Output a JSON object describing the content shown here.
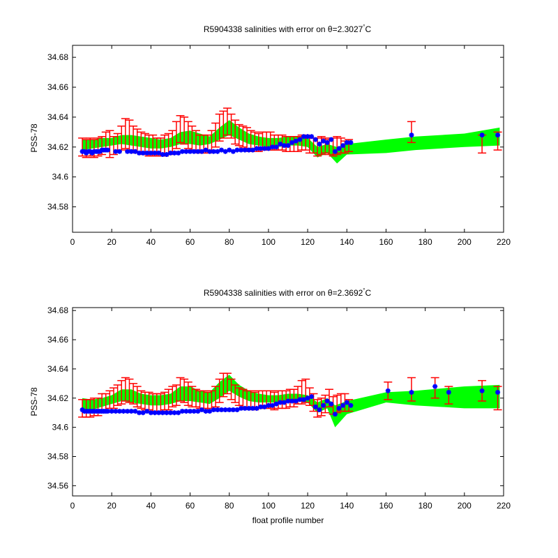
{
  "chart_data": [
    {
      "type": "line",
      "title": "R5904338 salinities with error on θ=2.3027",
      "title_superscript": "°",
      "title_unit": "C",
      "xlabel": "",
      "ylabel": "PSS-78",
      "xlim": [
        0,
        220
      ],
      "ylim": [
        34.563,
        34.688
      ],
      "xticks": [
        0,
        20,
        40,
        60,
        80,
        100,
        120,
        140,
        160,
        180,
        200,
        220
      ],
      "yticks": [
        34.58,
        34.6,
        34.62,
        34.64,
        34.66,
        34.68
      ],
      "ytick_labels": [
        "34.58",
        "34.6",
        "34.62",
        "34.64",
        "34.66",
        "34.68"
      ],
      "band_color": "#00ff00",
      "error_color": "#ff0000",
      "point_color": "#0000ff",
      "band": {
        "x": [
          5,
          10,
          15,
          20,
          25,
          30,
          35,
          40,
          45,
          50,
          55,
          60,
          65,
          70,
          75,
          80,
          85,
          90,
          95,
          100,
          105,
          110,
          115,
          120,
          125,
          130,
          135,
          140,
          160,
          175,
          200,
          218
        ],
        "lower": [
          34.618,
          34.619,
          34.62,
          34.621,
          34.622,
          34.621,
          34.62,
          34.619,
          34.619,
          34.62,
          34.622,
          34.622,
          34.621,
          34.622,
          34.625,
          34.628,
          34.625,
          34.622,
          34.621,
          34.62,
          34.62,
          34.621,
          34.621,
          34.62,
          34.613,
          34.616,
          34.609,
          34.615,
          34.616,
          34.618,
          34.62,
          34.621
        ],
        "upper": [
          34.625,
          34.625,
          34.626,
          34.626,
          34.628,
          34.628,
          34.627,
          34.626,
          34.625,
          34.626,
          34.63,
          34.631,
          34.629,
          34.627,
          34.633,
          34.638,
          34.633,
          34.629,
          34.627,
          34.626,
          34.626,
          34.627,
          34.627,
          34.626,
          34.62,
          34.622,
          34.62,
          34.622,
          34.625,
          34.627,
          34.629,
          34.633
        ]
      },
      "errorbars": {
        "x": [
          5,
          7,
          9,
          11,
          13,
          15,
          17,
          19,
          21,
          23,
          25,
          27,
          29,
          31,
          33,
          35,
          37,
          39,
          41,
          43,
          45,
          47,
          49,
          51,
          53,
          55,
          57,
          59,
          61,
          63,
          65,
          67,
          69,
          71,
          73,
          75,
          77,
          79,
          81,
          83,
          85,
          87,
          89,
          91,
          93,
          95,
          97,
          99,
          101,
          103,
          105,
          107,
          109,
          111,
          113,
          115,
          117,
          119,
          121,
          123,
          125,
          127,
          129,
          131,
          133,
          135,
          137,
          139,
          141,
          173,
          209,
          217
        ],
        "y": [
          34.62,
          34.619,
          34.62,
          34.619,
          34.62,
          34.621,
          34.624,
          34.622,
          34.621,
          34.623,
          34.626,
          34.629,
          34.628,
          34.626,
          34.624,
          34.623,
          34.622,
          34.621,
          34.621,
          34.62,
          34.62,
          34.621,
          34.622,
          34.624,
          34.628,
          34.632,
          34.631,
          34.628,
          34.626,
          34.624,
          34.622,
          34.622,
          34.622,
          34.624,
          34.628,
          34.633,
          34.635,
          34.637,
          34.634,
          34.63,
          34.628,
          34.627,
          34.626,
          34.624,
          34.624,
          34.623,
          34.624,
          34.624,
          34.624,
          34.623,
          34.623,
          34.623,
          34.622,
          34.622,
          34.622,
          34.622,
          34.623,
          34.623,
          34.621,
          34.621,
          34.62,
          34.621,
          34.621,
          34.62,
          34.62,
          34.621,
          34.621,
          34.62,
          34.621,
          34.63,
          34.622,
          34.624
        ],
        "err": [
          0.006,
          0.006,
          0.006,
          0.006,
          0.006,
          0.006,
          0.006,
          0.009,
          0.006,
          0.006,
          0.008,
          0.01,
          0.01,
          0.008,
          0.008,
          0.007,
          0.007,
          0.007,
          0.007,
          0.006,
          0.006,
          0.007,
          0.007,
          0.007,
          0.009,
          0.009,
          0.009,
          0.009,
          0.008,
          0.007,
          0.006,
          0.006,
          0.006,
          0.007,
          0.008,
          0.009,
          0.009,
          0.009,
          0.008,
          0.008,
          0.007,
          0.007,
          0.007,
          0.007,
          0.006,
          0.006,
          0.006,
          0.006,
          0.006,
          0.005,
          0.005,
          0.005,
          0.005,
          0.005,
          0.005,
          0.005,
          0.005,
          0.005,
          0.005,
          0.005,
          0.006,
          0.006,
          0.005,
          0.005,
          0.006,
          0.006,
          0.005,
          0.004,
          0.004,
          0.007,
          0.006,
          0.006
        ]
      },
      "points": {
        "x": [
          5,
          6,
          7,
          8,
          9,
          10,
          11,
          12,
          13,
          14,
          15,
          16,
          17,
          18,
          22,
          24,
          28,
          30,
          32,
          34,
          36,
          38,
          40,
          42,
          44,
          46,
          48,
          50,
          52,
          54,
          56,
          58,
          60,
          62,
          64,
          66,
          68,
          70,
          72,
          74,
          76,
          78,
          80,
          82,
          84,
          86,
          88,
          90,
          92,
          94,
          96,
          98,
          100,
          102,
          104,
          106,
          108,
          110,
          112,
          114,
          116,
          118,
          120,
          122,
          124,
          126,
          128,
          130,
          132,
          134,
          136,
          138,
          140,
          142,
          173,
          209,
          217
        ],
        "y": [
          34.617,
          34.617,
          34.616,
          34.617,
          34.617,
          34.616,
          34.617,
          34.617,
          34.617,
          34.617,
          34.618,
          34.618,
          34.618,
          34.618,
          34.617,
          34.617,
          34.617,
          34.617,
          34.617,
          34.616,
          34.616,
          34.616,
          34.616,
          34.616,
          34.616,
          34.615,
          34.615,
          34.616,
          34.616,
          34.616,
          34.617,
          34.617,
          34.617,
          34.617,
          34.617,
          34.617,
          34.618,
          34.617,
          34.617,
          34.617,
          34.618,
          34.617,
          34.618,
          34.617,
          34.618,
          34.618,
          34.618,
          34.618,
          34.618,
          34.619,
          34.619,
          34.619,
          34.619,
          34.62,
          34.62,
          34.622,
          34.621,
          34.621,
          34.623,
          34.624,
          34.625,
          34.627,
          34.627,
          34.627,
          34.625,
          34.622,
          34.624,
          34.623,
          34.625,
          34.617,
          34.619,
          34.621,
          34.623,
          34.623,
          34.628,
          34.628,
          34.628
        ]
      }
    },
    {
      "type": "line",
      "title": "R5904338 salinities with error on θ=2.3692",
      "title_superscript": "°",
      "title_unit": "C",
      "xlabel": "float profile number",
      "ylabel": "PSS-78",
      "xlim": [
        0,
        220
      ],
      "ylim": [
        34.553,
        34.682
      ],
      "xticks": [
        0,
        20,
        40,
        60,
        80,
        100,
        120,
        140,
        160,
        180,
        200,
        220
      ],
      "yticks": [
        34.56,
        34.58,
        34.6,
        34.62,
        34.64,
        34.66,
        34.68
      ],
      "ytick_labels": [
        "34.56",
        "34.58",
        "34.6",
        "34.62",
        "34.64",
        "34.66",
        "34.68"
      ],
      "band_color": "#00ff00",
      "error_color": "#ff0000",
      "point_color": "#0000ff",
      "band": {
        "x": [
          5,
          10,
          15,
          20,
          25,
          30,
          35,
          40,
          45,
          50,
          55,
          60,
          65,
          70,
          75,
          80,
          85,
          90,
          95,
          100,
          105,
          110,
          115,
          120,
          125,
          130,
          134,
          140,
          160,
          175,
          200,
          218
        ],
        "lower": [
          34.612,
          34.612,
          34.614,
          34.616,
          34.618,
          34.617,
          34.616,
          34.615,
          34.615,
          34.616,
          34.618,
          34.618,
          34.617,
          34.616,
          34.62,
          34.625,
          34.621,
          34.618,
          34.617,
          34.617,
          34.617,
          34.617,
          34.618,
          34.617,
          34.61,
          34.613,
          34.6,
          34.609,
          34.617,
          34.615,
          34.613,
          34.613
        ],
        "upper": [
          34.62,
          34.619,
          34.62,
          34.622,
          34.626,
          34.626,
          34.623,
          34.622,
          34.622,
          34.623,
          34.628,
          34.628,
          34.625,
          34.624,
          34.631,
          34.636,
          34.629,
          34.625,
          34.623,
          34.622,
          34.622,
          34.623,
          34.623,
          34.622,
          34.617,
          34.62,
          34.615,
          34.618,
          34.624,
          34.625,
          34.628,
          34.629
        ]
      },
      "errorbars": {
        "x": [
          5,
          7,
          9,
          11,
          13,
          15,
          17,
          19,
          21,
          23,
          25,
          27,
          29,
          31,
          33,
          35,
          37,
          39,
          41,
          43,
          45,
          47,
          49,
          51,
          53,
          55,
          57,
          59,
          61,
          63,
          65,
          67,
          69,
          71,
          73,
          75,
          77,
          79,
          81,
          83,
          85,
          87,
          89,
          91,
          93,
          95,
          97,
          99,
          101,
          103,
          105,
          107,
          109,
          111,
          113,
          115,
          117,
          119,
          121,
          123,
          125,
          127,
          129,
          131,
          133,
          135,
          137,
          139,
          141,
          161,
          173,
          185,
          192,
          209,
          217
        ],
        "y": [
          34.613,
          34.613,
          34.613,
          34.614,
          34.614,
          34.617,
          34.617,
          34.619,
          34.62,
          34.622,
          34.624,
          34.626,
          34.625,
          34.623,
          34.621,
          34.619,
          34.618,
          34.618,
          34.617,
          34.617,
          34.617,
          34.618,
          34.619,
          34.621,
          34.622,
          34.626,
          34.625,
          34.623,
          34.621,
          34.62,
          34.619,
          34.619,
          34.618,
          34.619,
          34.621,
          34.625,
          34.629,
          34.63,
          34.626,
          34.623,
          34.621,
          34.62,
          34.619,
          34.619,
          34.618,
          34.619,
          34.619,
          34.619,
          34.619,
          34.618,
          34.619,
          34.619,
          34.619,
          34.62,
          34.62,
          34.622,
          34.624,
          34.625,
          34.621,
          34.617,
          34.613,
          34.614,
          34.616,
          34.62,
          34.615,
          34.616,
          34.617,
          34.617,
          34.615,
          34.625,
          34.626,
          34.627,
          34.622,
          34.625,
          34.62
        ],
        "err": [
          0.006,
          0.006,
          0.006,
          0.006,
          0.006,
          0.006,
          0.006,
          0.006,
          0.007,
          0.007,
          0.008,
          0.008,
          0.008,
          0.007,
          0.007,
          0.006,
          0.006,
          0.006,
          0.006,
          0.006,
          0.006,
          0.006,
          0.007,
          0.007,
          0.007,
          0.008,
          0.008,
          0.008,
          0.007,
          0.006,
          0.006,
          0.006,
          0.006,
          0.006,
          0.007,
          0.008,
          0.008,
          0.007,
          0.007,
          0.006,
          0.006,
          0.006,
          0.006,
          0.006,
          0.006,
          0.006,
          0.006,
          0.006,
          0.006,
          0.006,
          0.006,
          0.006,
          0.006,
          0.006,
          0.006,
          0.006,
          0.008,
          0.008,
          0.006,
          0.006,
          0.006,
          0.006,
          0.006,
          0.006,
          0.006,
          0.006,
          0.006,
          0.006,
          0.004,
          0.006,
          0.008,
          0.007,
          0.006,
          0.007,
          0.008
        ]
      },
      "points": {
        "x": [
          5,
          6,
          7,
          8,
          9,
          10,
          11,
          12,
          13,
          14,
          15,
          16,
          17,
          18,
          20,
          22,
          24,
          26,
          28,
          30,
          32,
          34,
          36,
          38,
          40,
          42,
          44,
          46,
          48,
          50,
          52,
          54,
          56,
          58,
          60,
          62,
          64,
          66,
          68,
          70,
          72,
          74,
          76,
          78,
          80,
          82,
          84,
          86,
          88,
          90,
          92,
          94,
          96,
          98,
          100,
          102,
          104,
          106,
          108,
          110,
          112,
          114,
          116,
          118,
          120,
          122,
          124,
          126,
          128,
          130,
          132,
          134,
          136,
          138,
          140,
          142,
          161,
          173,
          185,
          192,
          209,
          217
        ],
        "y": [
          34.612,
          34.611,
          34.611,
          34.611,
          34.611,
          34.611,
          34.611,
          34.611,
          34.611,
          34.611,
          34.611,
          34.611,
          34.611,
          34.611,
          34.611,
          34.611,
          34.611,
          34.611,
          34.611,
          34.611,
          34.611,
          34.61,
          34.61,
          34.611,
          34.61,
          34.61,
          34.61,
          34.61,
          34.61,
          34.61,
          34.61,
          34.61,
          34.611,
          34.611,
          34.611,
          34.611,
          34.611,
          34.612,
          34.611,
          34.611,
          34.612,
          34.612,
          34.612,
          34.612,
          34.612,
          34.612,
          34.612,
          34.613,
          34.613,
          34.613,
          34.613,
          34.613,
          34.614,
          34.614,
          34.615,
          34.615,
          34.616,
          34.617,
          34.617,
          34.618,
          34.618,
          34.618,
          34.619,
          34.619,
          34.62,
          34.621,
          34.614,
          34.612,
          34.615,
          34.618,
          34.616,
          34.609,
          34.613,
          34.615,
          34.617,
          34.615,
          34.625,
          34.624,
          34.628,
          34.624,
          34.625,
          34.624
        ]
      }
    }
  ]
}
